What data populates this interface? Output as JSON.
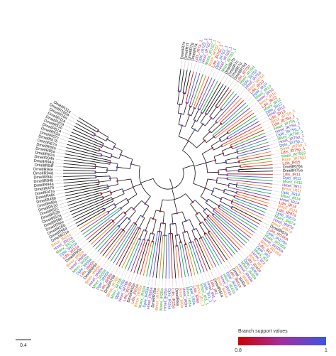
{
  "figure": {
    "scale_bar_label": "0.4",
    "legend": {
      "title": "Branch support values",
      "min_label": "0.8",
      "max_label": "1",
      "color_low": "#cc0000",
      "color_mid": "#a030a0",
      "color_high": "#3a56e0"
    },
    "clade_colors": {
      "Dmel": "#111111",
      "Ldis": "#d21919",
      "Bmor": "#f07a1a",
      "Msex": "#1faa2a",
      "Dple": "#2468d8",
      "Hmel": "#7a2db0"
    },
    "leaves": [
      {
        "label": "DmelIR7e",
        "clade": "Dmel"
      },
      {
        "label": "DmelIR7f",
        "clade": "Dmel"
      },
      {
        "label": "DmelIR7g",
        "clade": "Dmel"
      },
      {
        "label": "DmelIR7a",
        "clade": "Dmel"
      },
      {
        "label": "Ldis_IR7a_1",
        "clade": "Ldis"
      },
      {
        "label": "Dple_IR7d2_1",
        "clade": "Dple"
      },
      {
        "label": "Hmel_IR7d2_1",
        "clade": "Hmel"
      },
      {
        "label": "Msex_IR7d2_1",
        "clade": "Msex"
      },
      {
        "label": "Bmor_IR7d2_1",
        "clade": "Bmor"
      },
      {
        "label": "Ldis_IR7d2_1",
        "clade": "Ldis"
      },
      {
        "label": "Dple_IR7d3_1",
        "clade": "Dple"
      },
      {
        "label": "Hmel_IR7d3_1",
        "clade": "Hmel"
      },
      {
        "label": "Msex_IR7d3_1",
        "clade": "Msex"
      },
      {
        "label": "DmelIR7b",
        "clade": "Dmel"
      },
      {
        "label": "DmelIR7c",
        "clade": "Dmel"
      },
      {
        "label": "DmelIR7d",
        "clade": "Dmel"
      },
      {
        "label": "DmelIR75d",
        "clade": "Dmel"
      },
      {
        "label": "Ldis_IR75d",
        "clade": "Ldis"
      },
      {
        "label": "Msex_IR75d",
        "clade": "Msex"
      },
      {
        "label": "Dple_IR75d",
        "clade": "Dple"
      },
      {
        "label": "Hmel_IR75d",
        "clade": "Hmel"
      },
      {
        "label": "Bmor_IR75d",
        "clade": "Bmor"
      },
      {
        "label": "Ldis_IR10",
        "clade": "Ldis"
      },
      {
        "label": "Dple_IR10",
        "clade": "Dple"
      },
      {
        "label": "Msex_IR10",
        "clade": "Msex"
      },
      {
        "label": "Hmel_IR10",
        "clade": "Hmel"
      },
      {
        "label": "Bmor_IR10",
        "clade": "Bmor"
      },
      {
        "label": "Ldis_IR12",
        "clade": "Ldis"
      },
      {
        "label": "Msex_IR12",
        "clade": "Msex"
      },
      {
        "label": "Dple_IR12",
        "clade": "Dple"
      },
      {
        "label": "Hmel_IR12",
        "clade": "Hmel"
      },
      {
        "label": "Ldis_IR13",
        "clade": "Ldis"
      },
      {
        "label": "Bmor_IR75q_1",
        "clade": "Bmor"
      },
      {
        "label": "Ldis_IR75q_1",
        "clade": "Ldis"
      },
      {
        "label": "Msex_IR75q_1",
        "clade": "Msex"
      },
      {
        "label": "Hmel_IR75q_1",
        "clade": "Hmel"
      },
      {
        "label": "Dple_IR75q_1",
        "clade": "Dple"
      },
      {
        "label": "Msex_IR75p_1",
        "clade": "Msex"
      },
      {
        "label": "Hmel_IR75p_1",
        "clade": "Hmel"
      },
      {
        "label": "Dple_IR75p_1",
        "clade": "Dple"
      },
      {
        "label": "Bmor_IR75p_1",
        "clade": "Bmor"
      },
      {
        "label": "Ldis_IR75p_1",
        "clade": "Ldis"
      },
      {
        "label": "Msex_IR75p2",
        "clade": "Msex"
      },
      {
        "label": "Bmor_IR75p2",
        "clade": "Bmor"
      },
      {
        "label": "Ldis_IR15",
        "clade": "Ldis"
      },
      {
        "label": "DmelIR76a",
        "clade": "Dmel"
      },
      {
        "label": "DmelIR75a",
        "clade": "Dmel"
      },
      {
        "label": "Ldis_IR11",
        "clade": "Ldis"
      },
      {
        "label": "Dple_IR11",
        "clade": "Dple"
      },
      {
        "label": "Msex_IR11",
        "clade": "Msex"
      },
      {
        "label": "Hmel_IR11",
        "clade": "Hmel"
      },
      {
        "label": "Bmor_IR11",
        "clade": "Bmor"
      },
      {
        "label": "Dple_IR14",
        "clade": "Dple"
      },
      {
        "label": "Msex_IR14",
        "clade": "Msex"
      },
      {
        "label": "Hmel_IR14",
        "clade": "Hmel"
      },
      {
        "label": "Ldis_IR14",
        "clade": "Ldis"
      },
      {
        "label": "Bmor_IR14",
        "clade": "Bmor"
      },
      {
        "label": "Ldis_IR87a",
        "clade": "Ldis"
      },
      {
        "label": "Dple_IR87a",
        "clade": "Dple"
      },
      {
        "label": "Msex_IR87a",
        "clade": "Msex"
      },
      {
        "label": "Hmel_IR87a",
        "clade": "Hmel"
      },
      {
        "label": "Bmor_IR87a",
        "clade": "Bmor"
      },
      {
        "label": "DmelIR87a",
        "clade": "Dmel"
      },
      {
        "label": "Ldis_IR100a",
        "clade": "Ldis"
      },
      {
        "label": "Dple_IR100a",
        "clade": "Dple"
      },
      {
        "label": "Msex_IR100a",
        "clade": "Msex"
      },
      {
        "label": "Hmel_IR100a",
        "clade": "Hmel"
      },
      {
        "label": "Bmor_IR100a",
        "clade": "Bmor"
      },
      {
        "label": "Ldis_IR2",
        "clade": "Ldis"
      },
      {
        "label": "Dple_IR2",
        "clade": "Dple"
      },
      {
        "label": "Msex_IR2",
        "clade": "Msex"
      },
      {
        "label": "Hmel_IR2",
        "clade": "Hmel"
      },
      {
        "label": "Bmor_IR2",
        "clade": "Bmor"
      },
      {
        "label": "Ldis_IR40a",
        "clade": "Ldis"
      },
      {
        "label": "Dple_IR40a",
        "clade": "Dple"
      },
      {
        "label": "Msex_IR40a",
        "clade": "Msex"
      },
      {
        "label": "Hmel_IR40a",
        "clade": "Hmel"
      },
      {
        "label": "Bmor_IR40a",
        "clade": "Bmor"
      },
      {
        "label": "Dmel_IR40a",
        "clade": "Dmel"
      },
      {
        "label": "Ldis_IR41a",
        "clade": "Ldis"
      },
      {
        "label": "Dple_IR41a",
        "clade": "Dple"
      },
      {
        "label": "Msex_IR41a",
        "clade": "Msex"
      },
      {
        "label": "Hmel_IR41a",
        "clade": "Hmel"
      },
      {
        "label": "Bmor_IR41a",
        "clade": "Bmor"
      },
      {
        "label": "DmelIR41a",
        "clade": "Dmel"
      },
      {
        "label": "Ldis_IR1",
        "clade": "Ldis"
      },
      {
        "label": "Hmel_IR1_1",
        "clade": "Hmel"
      },
      {
        "label": "Dple_IR1_1",
        "clade": "Dple"
      },
      {
        "label": "Msex_IR1_1",
        "clade": "Msex"
      },
      {
        "label": "Bmor_IR1_1",
        "clade": "Bmor"
      },
      {
        "label": "Ldis_IR8a",
        "clade": "Ldis"
      },
      {
        "label": "Dple_IR8a",
        "clade": "Dple"
      },
      {
        "label": "Msex_IR8a",
        "clade": "Msex"
      },
      {
        "label": "Hmel_IR8a",
        "clade": "Hmel"
      },
      {
        "label": "Bmor_IR8a",
        "clade": "Bmor"
      },
      {
        "label": "DmelIR8a",
        "clade": "Dmel"
      },
      {
        "label": "Ldis_IR25a",
        "clade": "Ldis"
      },
      {
        "label": "Dple_IR25a",
        "clade": "Dple"
      },
      {
        "label": "Hmel_IR25a",
        "clade": "Hmel"
      },
      {
        "label": "Msex_IR25a",
        "clade": "Msex"
      },
      {
        "label": "Bmor_IR25a",
        "clade": "Bmor"
      },
      {
        "label": "DmelIR25a",
        "clade": "Dmel"
      },
      {
        "label": "Hmel_IR93a",
        "clade": "Hmel"
      },
      {
        "label": "Dple_IR93a",
        "clade": "Dple"
      },
      {
        "label": "Msex_IR93a",
        "clade": "Msex"
      },
      {
        "label": "Bmor_IR93a",
        "clade": "Bmor"
      },
      {
        "label": "Ldis_IR93a",
        "clade": "Ldis"
      },
      {
        "label": "DmelIR93a",
        "clade": "Dmel"
      },
      {
        "label": "Ldis_IR76b",
        "clade": "Ldis"
      },
      {
        "label": "Hmel_IR76b",
        "clade": "Hmel"
      },
      {
        "label": "Dple_IR76b",
        "clade": "Dple"
      },
      {
        "label": "Msex_IR76b",
        "clade": "Msex"
      },
      {
        "label": "Bmor_IR76b",
        "clade": "Bmor"
      },
      {
        "label": "DmelIR76b",
        "clade": "Dmel"
      },
      {
        "label": "Ldis_IR68a",
        "clade": "Ldis"
      },
      {
        "label": "Dple_IR68a",
        "clade": "Dple"
      },
      {
        "label": "Msex_IR68a",
        "clade": "Msex"
      },
      {
        "label": "Hmel_IR68a",
        "clade": "Hmel"
      },
      {
        "label": "Bmor_IR68a",
        "clade": "Bmor"
      },
      {
        "label": "DmelIR68a",
        "clade": "Dmel"
      },
      {
        "label": "Ldis_IR60a",
        "clade": "Ldis"
      },
      {
        "label": "Dple_IR60a",
        "clade": "Dple"
      },
      {
        "label": "Msex_IR60a",
        "clade": "Msex"
      },
      {
        "label": "Hmel_IR60a",
        "clade": "Hmel"
      },
      {
        "label": "Bmor_IR60a",
        "clade": "Bmor"
      },
      {
        "label": "DmelIR60a",
        "clade": "Dmel"
      },
      {
        "label": "Ldis_IR21a",
        "clade": "Ldis"
      },
      {
        "label": "Dple_IR21a",
        "clade": "Dple"
      },
      {
        "label": "Msex_IR21a",
        "clade": "Msex"
      },
      {
        "label": "Hmel_IR21a",
        "clade": "Hmel"
      },
      {
        "label": "Bmor_IR21a",
        "clade": "Bmor"
      },
      {
        "label": "DmelIR21a",
        "clade": "Dmel"
      },
      {
        "label": "DmelIR56a",
        "clade": "Dmel"
      },
      {
        "label": "DmelIR56b",
        "clade": "Dmel"
      },
      {
        "label": "DmelIR56c",
        "clade": "Dmel"
      },
      {
        "label": "DmelIR56d",
        "clade": "Dmel"
      },
      {
        "label": "DmelIR52a",
        "clade": "Dmel"
      },
      {
        "label": "DmelIR52b",
        "clade": "Dmel"
      },
      {
        "label": "DmelIR52c",
        "clade": "Dmel"
      },
      {
        "label": "DmelIR52d",
        "clade": "Dmel"
      },
      {
        "label": "DmelIR48a",
        "clade": "Dmel"
      },
      {
        "label": "DmelIR48b",
        "clade": "Dmel"
      },
      {
        "label": "DmelIR48c",
        "clade": "Dmel"
      },
      {
        "label": "DmelIR47a",
        "clade": "Dmel"
      },
      {
        "label": "DmelIR47b",
        "clade": "Dmel"
      },
      {
        "label": "DmelIR94a",
        "clade": "Dmel"
      },
      {
        "label": "DmelIR94b",
        "clade": "Dmel"
      },
      {
        "label": "DmelIR94c",
        "clade": "Dmel"
      },
      {
        "label": "DmelIR94d",
        "clade": "Dmel"
      },
      {
        "label": "DmelIR94e",
        "clade": "Dmel"
      },
      {
        "label": "DmelIR94f",
        "clade": "Dmel"
      },
      {
        "label": "DmelIR94g",
        "clade": "Dmel"
      },
      {
        "label": "DmelIR94h",
        "clade": "Dmel"
      },
      {
        "label": "DmelIR92a",
        "clade": "Dmel"
      },
      {
        "label": "DmelIR85a",
        "clade": "Dmel"
      },
      {
        "label": "DmelIR84a",
        "clade": "Dmel"
      },
      {
        "label": "DmelIR67a",
        "clade": "Dmel"
      },
      {
        "label": "DmelIR67b",
        "clade": "Dmel"
      },
      {
        "label": "DmelIR67c",
        "clade": "Dmel"
      },
      {
        "label": "DmelIR62a",
        "clade": "Dmel"
      },
      {
        "label": "DmelIR51a",
        "clade": "Dmel"
      },
      {
        "label": "DmelIR51b",
        "clade": "Dmel"
      },
      {
        "label": "DmelIR20a",
        "clade": "Dmel"
      },
      {
        "label": "DmelIR11a",
        "clade": "Dmel"
      },
      {
        "label": "DmelIR10a",
        "clade": "Dmel"
      },
      {
        "label": "DmelIR100a",
        "clade": "Dmel"
      },
      {
        "label": "DmelIR31a",
        "clade": "Dmel"
      }
    ]
  }
}
